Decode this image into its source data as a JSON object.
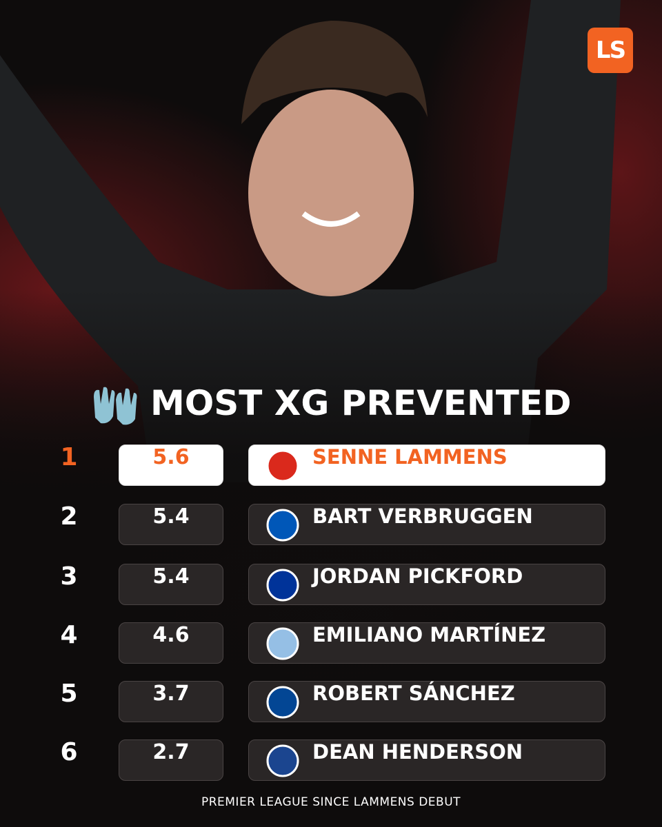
{
  "logo": "LS",
  "title": "MOST XG PREVENTED",
  "table": {
    "rows": [
      {
        "rank": 1,
        "value": 5.6,
        "name": "SENNE LAMMENS"
      },
      {
        "rank": 2,
        "value": 5.4,
        "name": "BART VERBRUGGEN"
      },
      {
        "rank": 3,
        "value": 5.4,
        "name": "JORDAN PICKFORD"
      },
      {
        "rank": 4,
        "value": 4.6,
        "name": "EMILIANO MARTÍNEZ"
      },
      {
        "rank": 5,
        "value": 3.7,
        "name": "ROBERT SÁNCHEZ"
      },
      {
        "rank": 6,
        "value": 2.7,
        "name": "DEAN HENDERSON"
      }
    ]
  },
  "footer": "PREMIER LEAGUE SINCE LAMMENS DEBUT"
}
